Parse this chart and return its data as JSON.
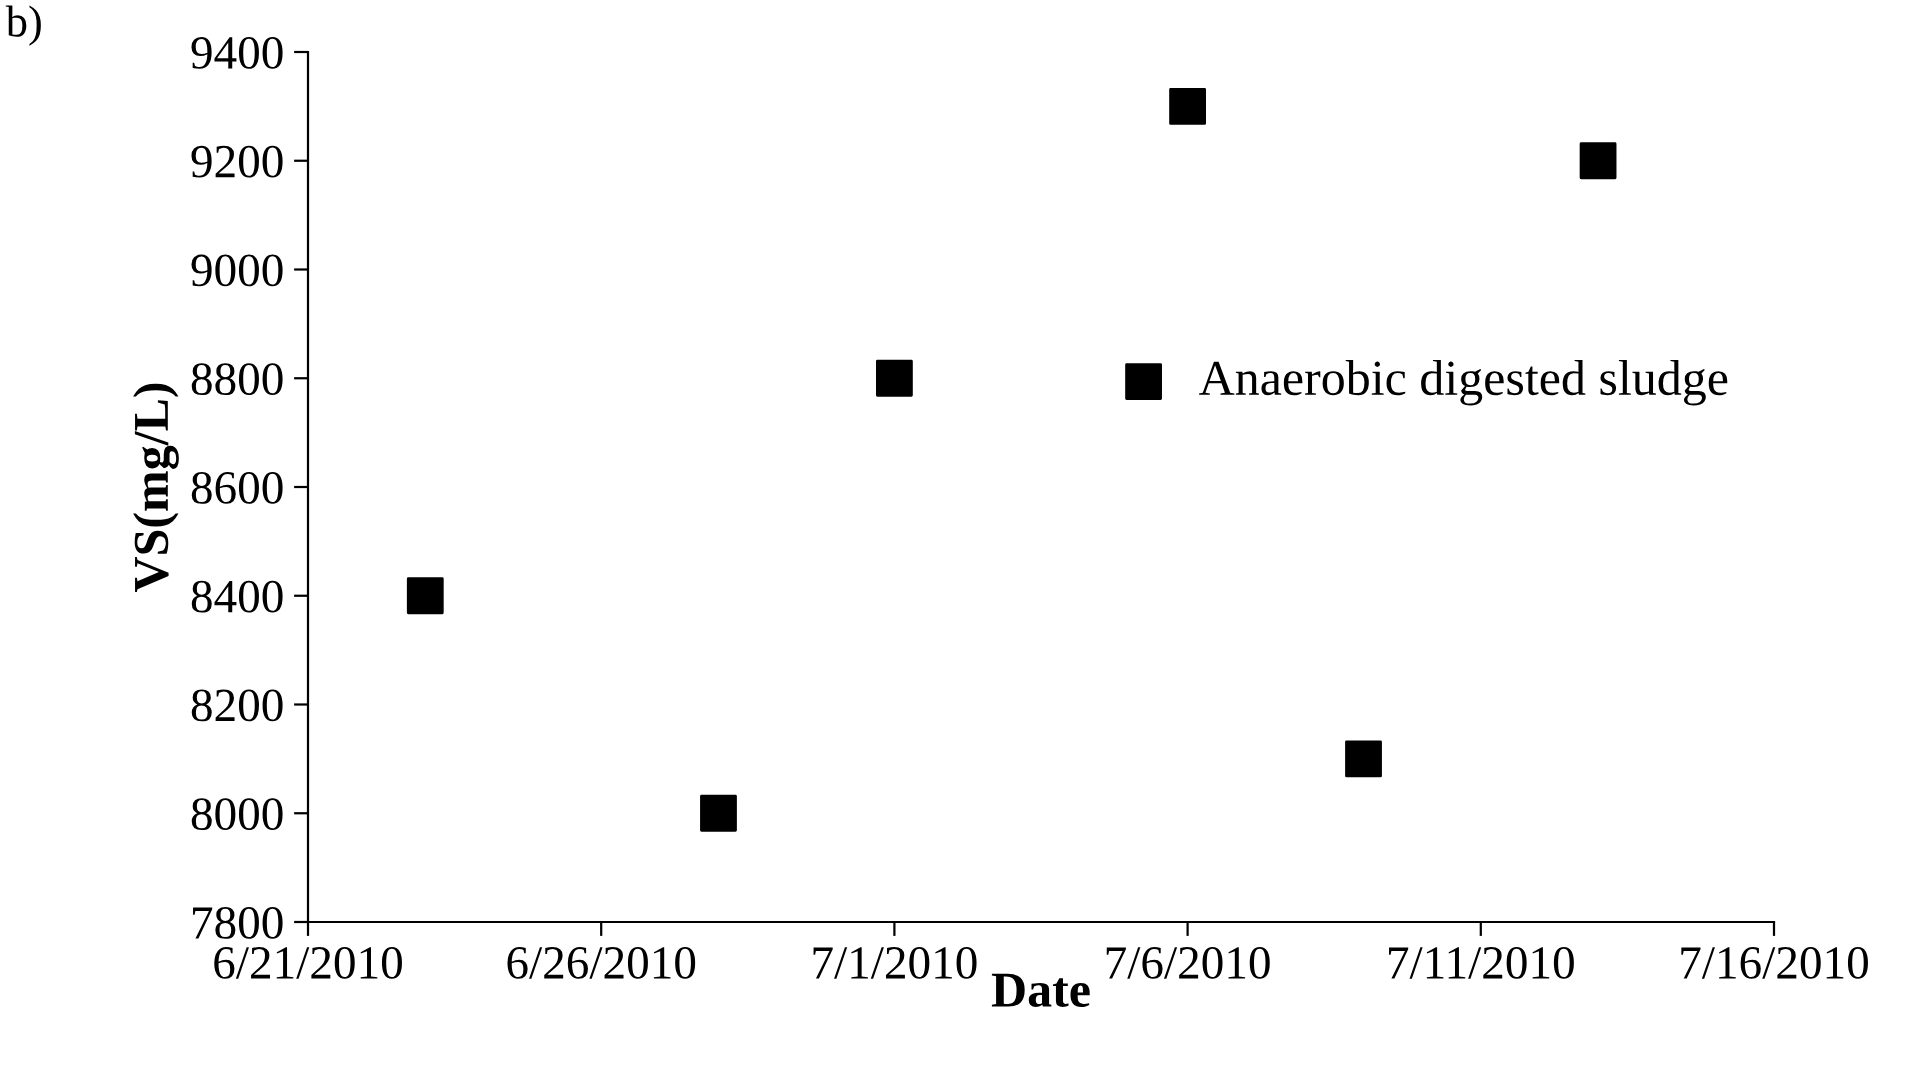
{
  "chart_data": {
    "type": "scatter",
    "xlabel": "Date",
    "ylabel": "VS(mg/L)",
    "annotations": [
      "b)"
    ],
    "x": [
      "2010-06-23",
      "2010-06-28",
      "2010-07-01",
      "2010-07-06",
      "2010-07-09",
      "2010-07-13"
    ],
    "series": [
      {
        "name": "Anaerobic digested sludge",
        "color": "#000000",
        "values": [
          8400,
          8000,
          8800,
          9300,
          8100,
          9200
        ]
      }
    ],
    "xlim": [
      "2010-06-21",
      "2010-07-16"
    ],
    "xticks": [
      {
        "value": "2010-06-21",
        "label": "6/21/2010"
      },
      {
        "value": "2010-06-26",
        "label": "6/26/2010"
      },
      {
        "value": "2010-07-01",
        "label": "7/1/2010"
      },
      {
        "value": "2010-07-06",
        "label": "7/6/2010"
      },
      {
        "value": "2010-07-11",
        "label": "7/11/2010"
      },
      {
        "value": "2010-07-16",
        "label": "7/16/2010"
      }
    ],
    "ylim": [
      7800,
      9400
    ],
    "yticks": [
      7800,
      8000,
      8200,
      8400,
      8600,
      8800,
      9000,
      9200,
      9400
    ],
    "marker": "square",
    "legend": "right",
    "grid": false
  }
}
